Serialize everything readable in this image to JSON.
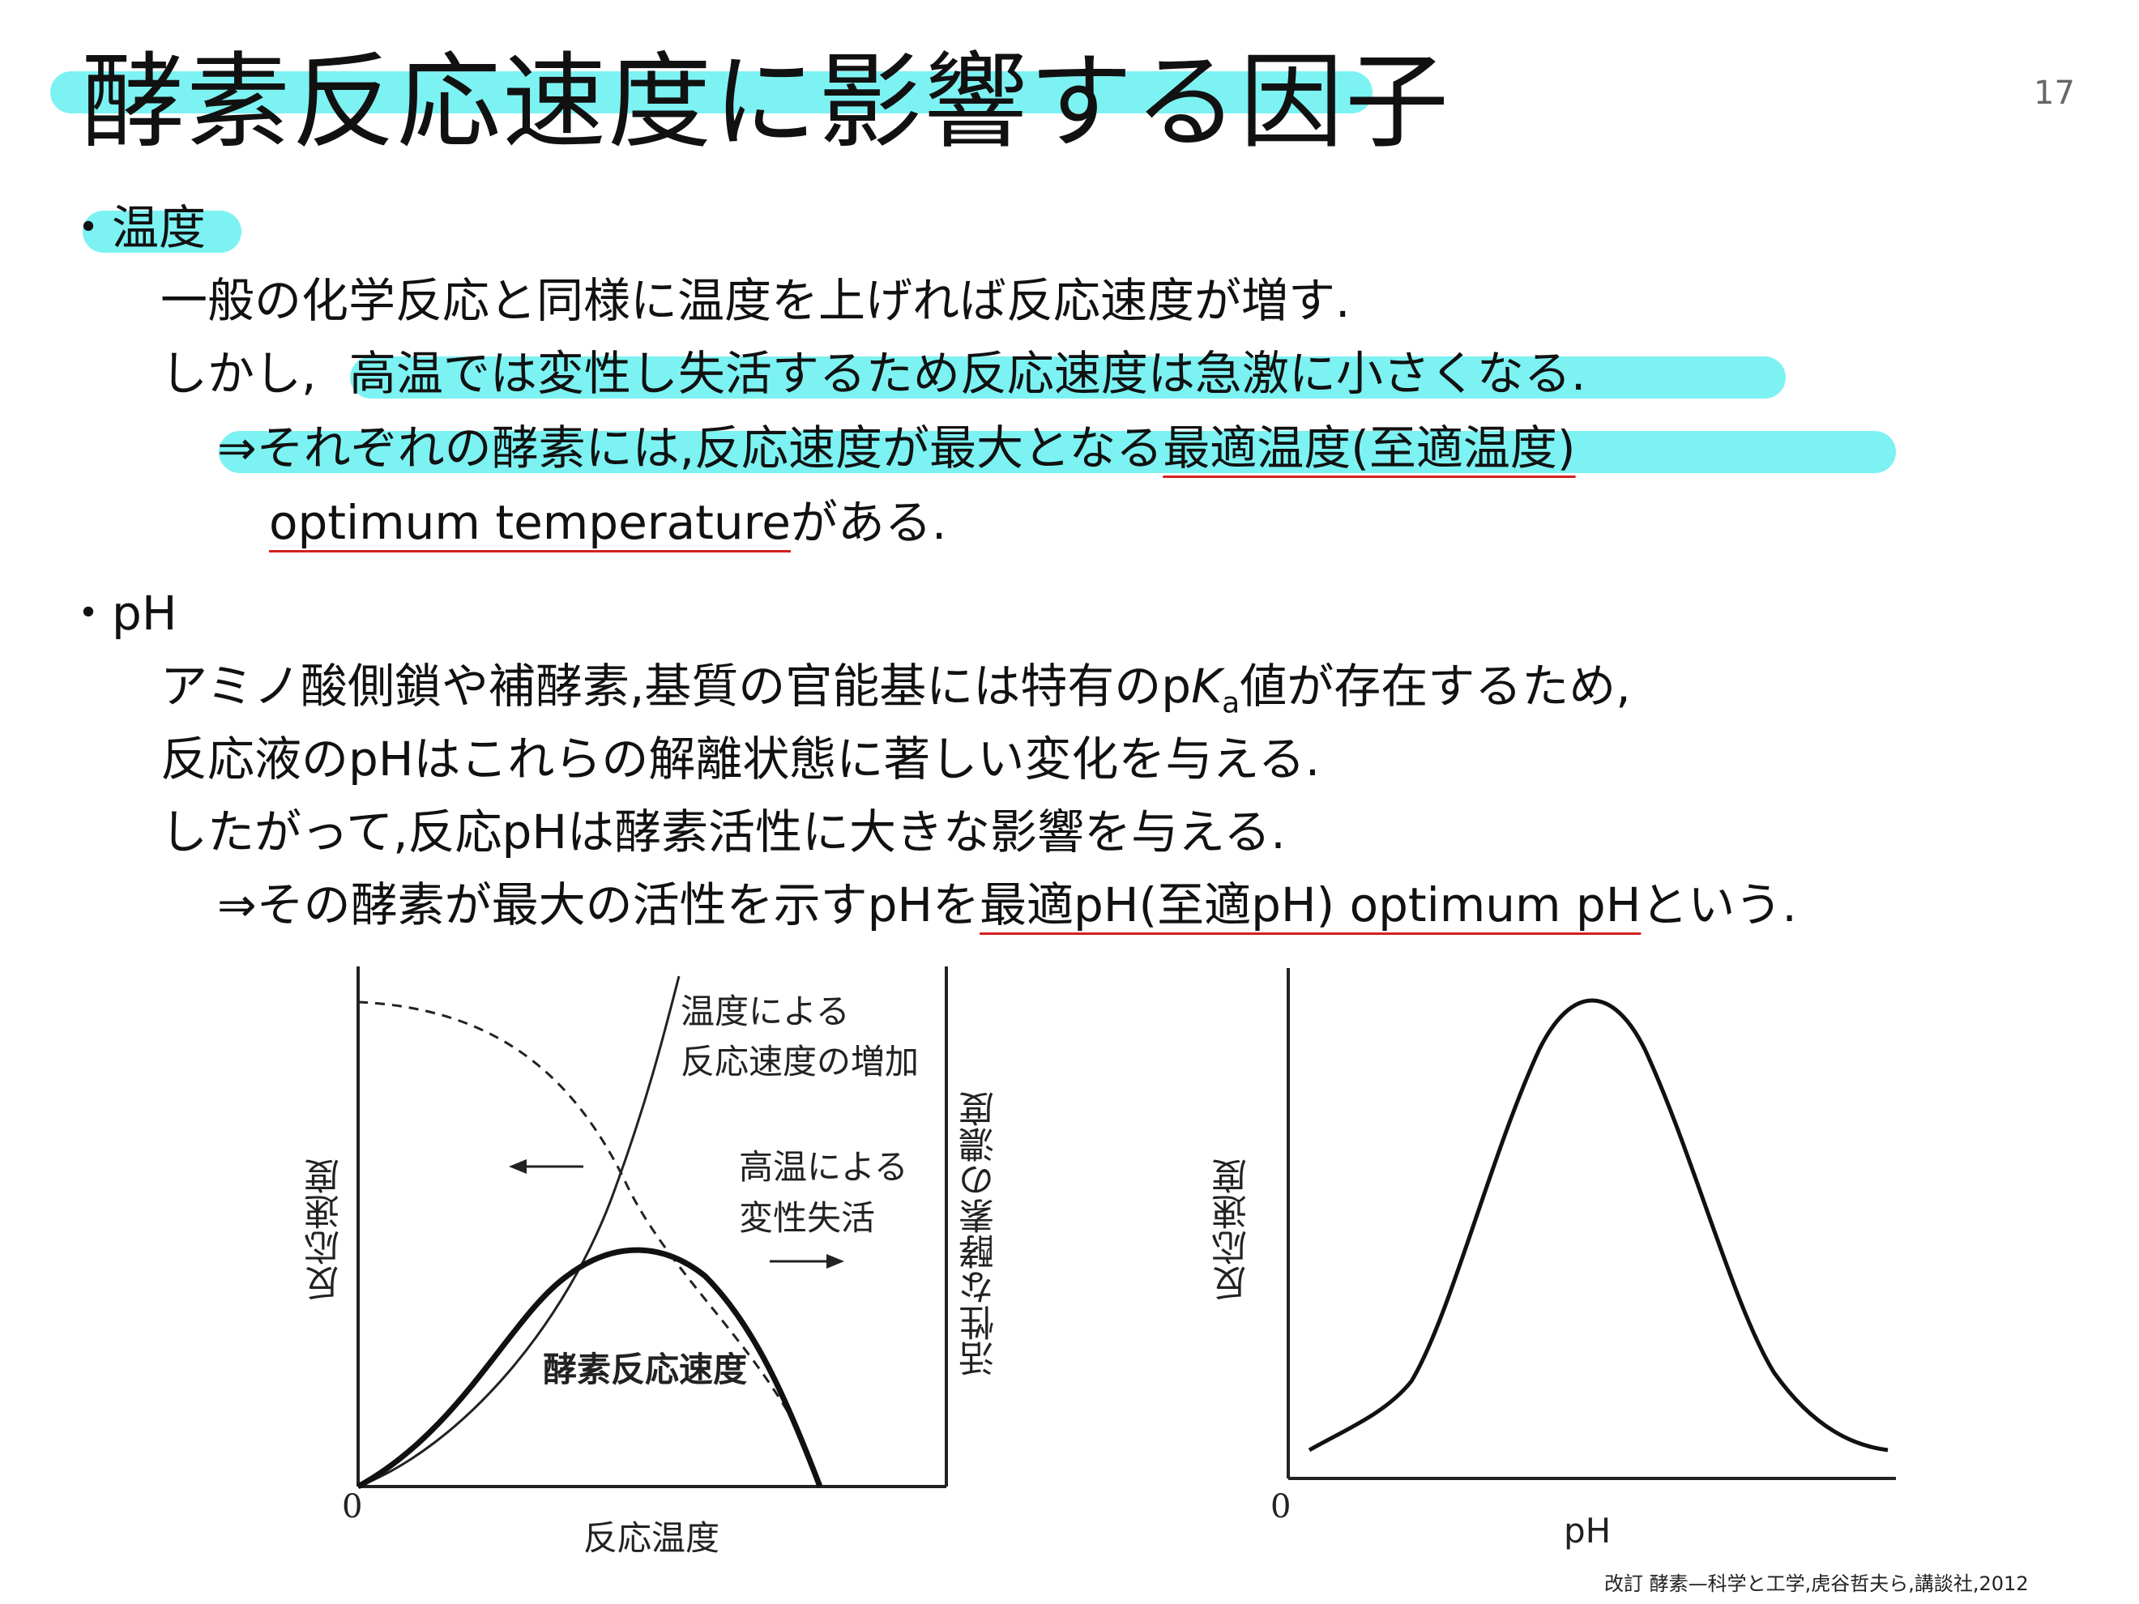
{
  "slide": {
    "title": "酵素反応速度に影響する因子",
    "page_number": "17",
    "temperature": {
      "bullet": "・",
      "heading": "温度",
      "line1": "一般の化学反応と同様に温度を上げれば反応速度が増す.",
      "line2_a": "しかし,",
      "line2_b": "高温では変性し失活するため反応速度は急激に小さくなる.",
      "line3_a": "⇒それぞれの酵素には,反応速度が最大となる",
      "line3_b": "最適温度(至適温度)",
      "line4_a": "optimum temperature",
      "line4_b": "がある."
    },
    "ph": {
      "bullet": "・",
      "heading": "pH",
      "line1_a": "アミノ酸側鎖や補酵素,基質の官能基には特有のp",
      "line1_k": "K",
      "line1_sub": "a",
      "line1_b": "値が存在するため,",
      "line2": "反応液のpHはこれらの解離状態に著しい変化を与える.",
      "line3": "したがって,反応pHは酵素活性に大きな影響を与える.",
      "line4_a": "⇒その酵素が最大の活性を示すpHを",
      "line4_b": "最適pH(至適pH) optimum pH",
      "line4_c": "という."
    },
    "citation": "改訂 酵素—科学と工学,虎谷哲夫ら,講談社,2012"
  },
  "figure_left": {
    "ylabel_left": "反応速度",
    "ylabel_right": "活性な酵素の濃度",
    "xlabel": "反応温度",
    "origin": "0",
    "label_increase_1": "温度による",
    "label_increase_2": "反応速度の増加",
    "label_denature_1": "高温による",
    "label_denature_2": "変性失活",
    "label_enzyme_rate": "酵素反応速度"
  },
  "figure_right": {
    "ylabel": "反応速度",
    "xlabel": "pH",
    "origin": "0"
  },
  "colors": {
    "highlight": "#7df2f2",
    "underline": "#d42020",
    "text": "#111111"
  }
}
